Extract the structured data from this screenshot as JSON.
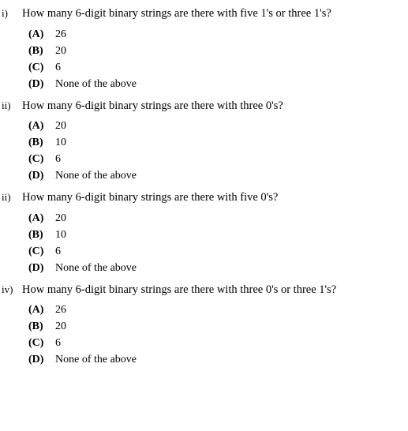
{
  "questions": [
    {
      "number": "i)",
      "text": "How many 6-digit binary strings are there with five 1's or three 1's?",
      "options": [
        {
          "label": "(A)",
          "text": "26"
        },
        {
          "label": "(B)",
          "text": "20"
        },
        {
          "label": "(C)",
          "text": "6"
        },
        {
          "label": "(D)",
          "text": "None of the above"
        }
      ]
    },
    {
      "number": "ii)",
      "text": "How many 6-digit binary strings are there with three 0's?",
      "options": [
        {
          "label": "(A)",
          "text": "20"
        },
        {
          "label": "(B)",
          "text": "10"
        },
        {
          "label": "(C)",
          "text": "6"
        },
        {
          "label": "(D)",
          "text": "None of the above"
        }
      ]
    },
    {
      "number": "ii)",
      "text": "How many 6-digit binary strings are there with five 0's?",
      "options": [
        {
          "label": "(A)",
          "text": "20"
        },
        {
          "label": "(B)",
          "text": "10"
        },
        {
          "label": "(C)",
          "text": "6"
        },
        {
          "label": "(D)",
          "text": "None of the above"
        }
      ]
    },
    {
      "number": "iv)",
      "text": "How many 6-digit binary strings are there with three 0's or three 1's?",
      "options": [
        {
          "label": "(A)",
          "text": "26"
        },
        {
          "label": "(B)",
          "text": "20"
        },
        {
          "label": "(C)",
          "text": "6"
        },
        {
          "label": "(D)",
          "text": "None of the above"
        }
      ]
    }
  ]
}
